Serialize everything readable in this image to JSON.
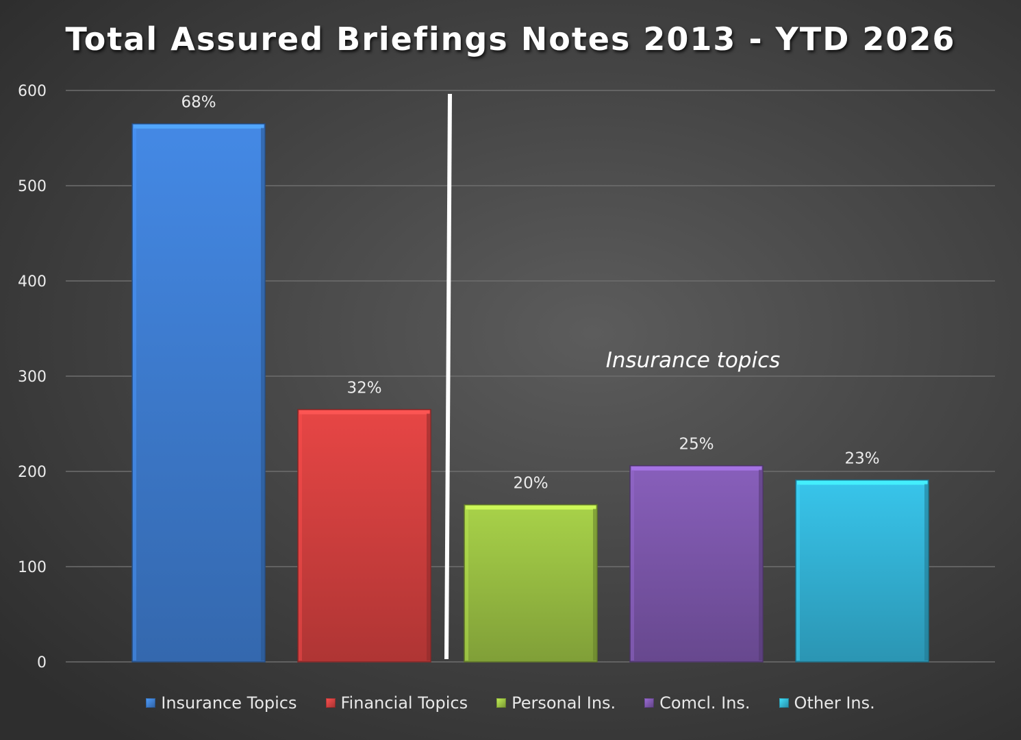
{
  "chart_data": {
    "type": "bar",
    "title": "Total Assured Briefings Notes 2013 - YTD 2026",
    "xlabel": "",
    "ylabel": "",
    "ylim": [
      0,
      600
    ],
    "yticks": [
      0,
      100,
      200,
      300,
      400,
      500,
      600
    ],
    "grid": true,
    "legend_position": "bottom",
    "categories": [
      "Insurance Topics",
      "Financial Topics",
      "Personal Ins.",
      "Comcl. Ins.",
      "Other Ins."
    ],
    "values": [
      565,
      265,
      165,
      206,
      191
    ],
    "data_labels": [
      "68%",
      "32%",
      "20%",
      "25%",
      "23%"
    ],
    "colors": [
      "#3f7fd4",
      "#d64140",
      "#9cc244",
      "#7e58ad",
      "#34b6da"
    ],
    "annotation": "Insurance topics"
  }
}
